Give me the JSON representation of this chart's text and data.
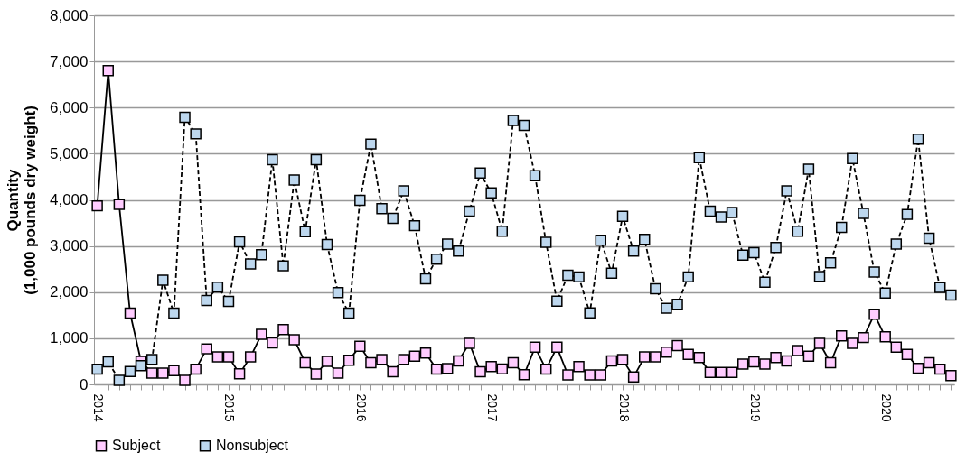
{
  "chart_data": {
    "type": "line",
    "ylabel": "Quantity\n(1,000 pounds dry weight)",
    "categories": [
      "2014",
      null,
      null,
      null,
      null,
      null,
      null,
      null,
      null,
      null,
      null,
      null,
      "2015",
      null,
      null,
      null,
      null,
      null,
      null,
      null,
      null,
      null,
      null,
      null,
      "2016",
      null,
      null,
      null,
      null,
      null,
      null,
      null,
      null,
      null,
      null,
      null,
      "2017",
      null,
      null,
      null,
      null,
      null,
      null,
      null,
      null,
      null,
      null,
      null,
      "2018",
      null,
      null,
      null,
      null,
      null,
      null,
      null,
      null,
      null,
      null,
      null,
      "2019",
      null,
      null,
      null,
      null,
      null,
      null,
      null,
      null,
      null,
      null,
      null,
      "2020",
      null,
      null,
      null,
      null,
      null,
      null
    ],
    "series": [
      {
        "name": "Subject",
        "color": "#ffccff",
        "line_style": "solid",
        "values": [
          3870,
          6800,
          3900,
          1545,
          500,
          245,
          245,
          300,
          90,
          330,
          770,
          595,
          595,
          230,
          595,
          1085,
          900,
          1190,
          970,
          470,
          225,
          500,
          245,
          525,
          825,
          470,
          540,
          275,
          540,
          610,
          680,
          330,
          345,
          510,
          890,
          275,
          385,
          335,
          470,
          210,
          805,
          330,
          805,
          205,
          385,
          205,
          205,
          510,
          540,
          160,
          595,
          595,
          700,
          840,
          650,
          580,
          260,
          260,
          260,
          440,
          490,
          440,
          580,
          510,
          735,
          610,
          890,
          470,
          1050,
          890,
          1015,
          1520,
          1030,
          805,
          650,
          350,
          470,
          330,
          190
        ]
      },
      {
        "name": "Nonsubject",
        "color": "#bdd7ee",
        "line_style": "dashed",
        "values": [
          330,
          490,
          90,
          280,
          405,
          540,
          2260,
          1545,
          5790,
          5430,
          1820,
          2110,
          1800,
          3090,
          2610,
          2810,
          4870,
          2570,
          4430,
          3310,
          4870,
          3030,
          1990,
          1545,
          3990,
          5210,
          3810,
          3600,
          4195,
          3440,
          2290,
          2715,
          3040,
          2890,
          3755,
          4580,
          4150,
          3320,
          5720,
          5615,
          4525,
          3080,
          1805,
          2365,
          2330,
          1550,
          3125,
          2410,
          3645,
          2890,
          3145,
          2075,
          1650,
          1735,
          2330,
          4915,
          3755,
          3630,
          3725,
          2800,
          2855,
          2215,
          2970,
          4195,
          3320,
          4665,
          2340,
          2635,
          3405,
          4895,
          3705,
          2435,
          1980,
          3040,
          3685,
          5315,
          3170,
          2100,
          1935
        ]
      }
    ],
    "ylim": [
      0,
      8000
    ],
    "yticks": [
      0,
      {
        "value": 1000,
        "label": "1,000"
      },
      {
        "value": 2000,
        "label": "2,000"
      },
      {
        "value": 3000,
        "label": "3,000"
      },
      {
        "value": 4000,
        "label": "4,000"
      },
      {
        "value": 5000,
        "label": "5,000"
      },
      {
        "value": 6000,
        "label": "6,000"
      },
      {
        "value": 7000,
        "label": "7,000"
      },
      {
        "value": 8000,
        "label": "8,000"
      }
    ],
    "grid": "y",
    "legend": "bottom",
    "marker": "square"
  }
}
